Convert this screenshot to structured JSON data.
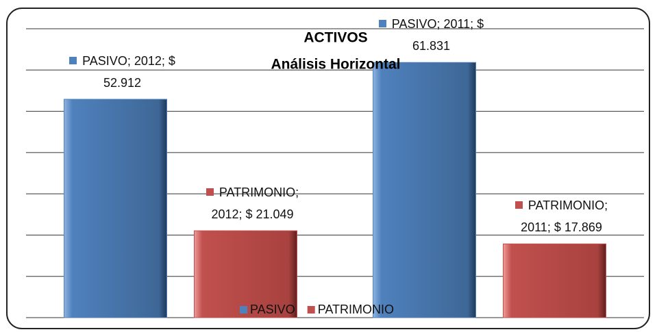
{
  "chart_data": {
    "type": "bar",
    "title": "ACTIVOS",
    "subtitle": "Análisis Horizontal",
    "categories": [
      null,
      null
    ],
    "series": [
      {
        "name": "PASIVO",
        "color": "#4f81bd",
        "values": [
          52.912,
          61.831
        ],
        "value_labels": [
          "PASIVO; 2012; $ 52.912",
          "PASIVO; 2011; $ 61.831"
        ]
      },
      {
        "name": "PATRIMONIO",
        "color": "#c0504d",
        "values": [
          21.049,
          17.869
        ],
        "value_labels": [
          "PATRIMONIO; 2012; $ 21.049",
          "PATRIMONIO; 2011; $ 17.869"
        ]
      }
    ],
    "ylim": [
      0,
      70
    ],
    "yticks": [
      0,
      10,
      20,
      30,
      40,
      50,
      60,
      70
    ],
    "grid": true,
    "legend": "bottom"
  }
}
